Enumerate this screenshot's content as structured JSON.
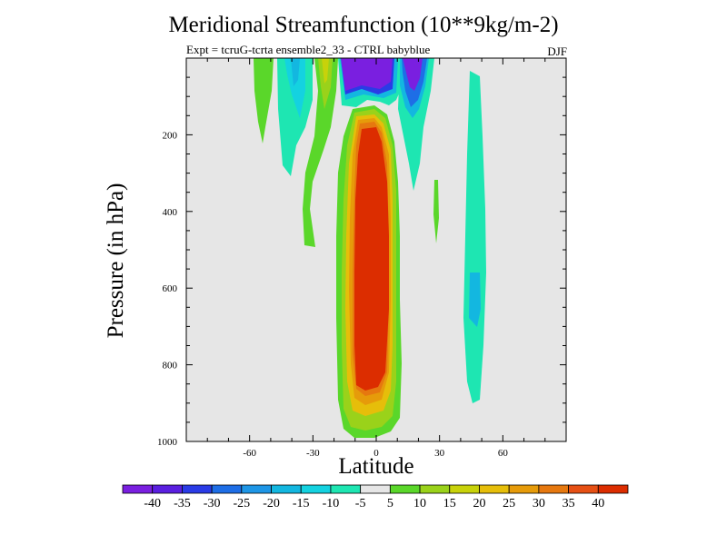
{
  "chart_data": {
    "type": "heatmap",
    "title": "Meridional Streamfunction (10**9kg/m-2)",
    "subtitle": "Expt = tcruG-tcrta ensemble2_33 - CTRL babyblue",
    "season": "DJF",
    "xlabel": "Latitude",
    "ylabel": "Pressure (in hPa)",
    "xlim": [
      -90,
      90
    ],
    "ylim": [
      1000,
      0
    ],
    "y_scale": "linear",
    "xticks": [
      -60,
      -30,
      0,
      30,
      60
    ],
    "xtick_labels": [
      "-60",
      "-30",
      "0",
      "30",
      "60"
    ],
    "yticks": [
      200,
      400,
      600,
      800,
      1000
    ],
    "ytick_labels": [
      "200",
      "400",
      "600",
      "800",
      "1000"
    ],
    "background": "#e6e6e6",
    "grid": false,
    "colorbar": {
      "position": "bottom",
      "levels": [
        -40,
        -35,
        -30,
        -25,
        -20,
        -15,
        -10,
        -5,
        5,
        10,
        15,
        20,
        25,
        30,
        35,
        40
      ],
      "labels": [
        "-40",
        "-35",
        "-30",
        "-25",
        "-20",
        "-15",
        "-10",
        "-5",
        "5",
        "10",
        "15",
        "20",
        "25",
        "30",
        "35",
        "40"
      ],
      "colors": [
        "#7a1fe0",
        "#5a1fe0",
        "#2a3be6",
        "#1e6ee6",
        "#1e96e6",
        "#13b7e0",
        "#14d2e0",
        "#1ee6b2",
        "#e6e6e6",
        "#5ad72a",
        "#9ad21a",
        "#c8d20a",
        "#e6be0a",
        "#e69b0a",
        "#e6780f",
        "#e65014",
        "#dc2d00"
      ]
    },
    "features": [
      {
        "name": "central positive cell",
        "lat_range": [
          -13,
          9
        ],
        "p_range": [
          80,
          985
        ],
        "max_value": 40
      },
      {
        "name": "upper negative cell",
        "lat_range": [
          -12,
          14
        ],
        "p_range": [
          0,
          50
        ],
        "min_value": -40
      },
      {
        "name": "north upper negative cell",
        "lat_range": [
          12,
          20
        ],
        "p_range": [
          0,
          90
        ],
        "min_value": -35
      },
      {
        "name": "north weak negative cell",
        "lat_range": [
          42,
          50
        ],
        "p_range": [
          0,
          900
        ],
        "min_value": -15
      },
      {
        "name": "south weak negative cell",
        "lat_range": [
          -40,
          -25
        ],
        "p_range": [
          0,
          240
        ],
        "min_value": -15
      },
      {
        "name": "southern weak positive",
        "lat_range": [
          -58,
          -48
        ],
        "p_range": [
          0,
          220
        ],
        "max_value": 10
      }
    ]
  }
}
